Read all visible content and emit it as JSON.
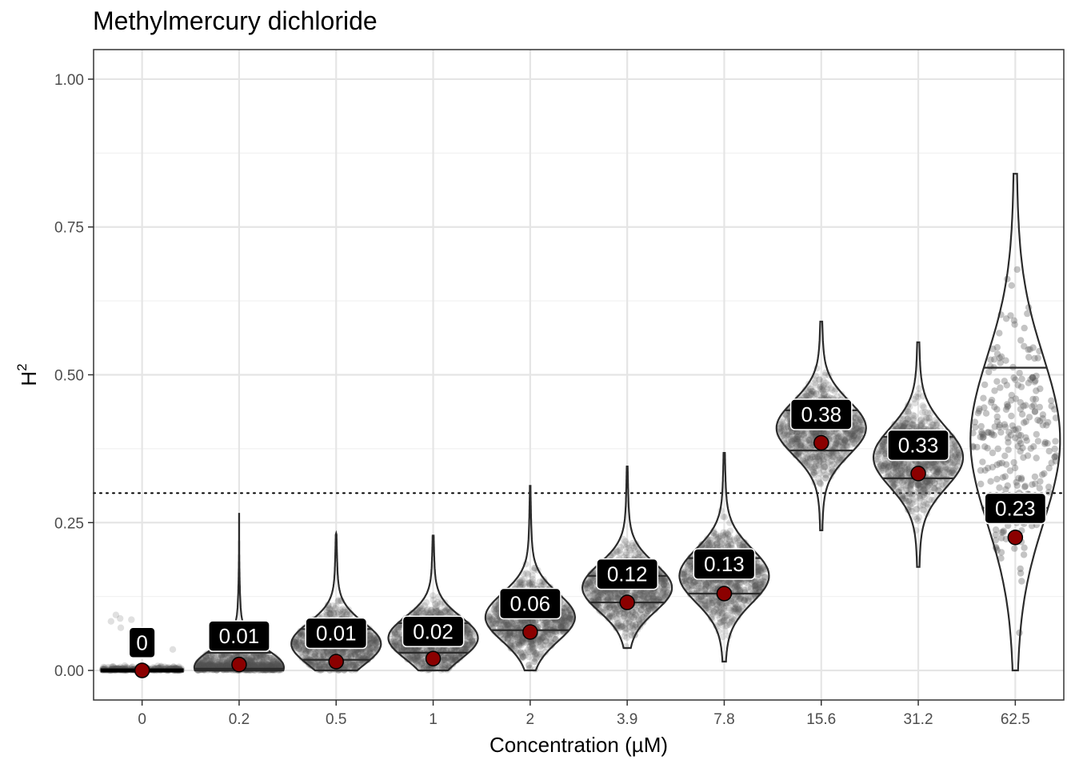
{
  "chart_data": {
    "type": "violin",
    "title": "Methylmercury dichloride",
    "xlabel": "Concentration (µM)",
    "ylabel": "H",
    "ylabel_sup": "2",
    "categories": [
      "0",
      "0.2",
      "0.5",
      "1",
      "2",
      "3.9",
      "7.8",
      "15.6",
      "31.2",
      "62.5"
    ],
    "ylim": [
      -0.05,
      1.05
    ],
    "yticks": [
      0.0,
      0.25,
      0.5,
      0.75,
      1.0
    ],
    "ytick_labels": [
      "0.00",
      "0.25",
      "0.50",
      "0.75",
      "1.00"
    ],
    "threshold": 0.3,
    "grid": true,
    "groups": [
      {
        "category": "0",
        "point": 0.0,
        "label": "0",
        "label_y": 0.047,
        "min": 0.0,
        "max": 0.113,
        "q1": 0.0,
        "q3": 0.0,
        "mode": 0.0,
        "spread": 0.0
      },
      {
        "category": "0.2",
        "point": 0.01,
        "label": "0.01",
        "label_y": 0.058,
        "min": 0.0,
        "max": 0.265,
        "q1": 0.003,
        "q3": 0.03,
        "mode": 0.005,
        "spread": 0.03
      },
      {
        "category": "0.5",
        "point": 0.015,
        "label": "0.01",
        "label_y": 0.063,
        "min": 0.0,
        "max": 0.232,
        "q1": 0.018,
        "q3": 0.07,
        "mode": 0.045,
        "spread": 0.035
      },
      {
        "category": "1",
        "point": 0.02,
        "label": "0.02",
        "label_y": 0.066,
        "min": 0.0,
        "max": 0.228,
        "q1": 0.03,
        "q3": 0.08,
        "mode": 0.055,
        "spread": 0.035
      },
      {
        "category": "2",
        "point": 0.065,
        "label": "0.06",
        "label_y": 0.113,
        "min": 0.0,
        "max": 0.312,
        "q1": 0.068,
        "q3": 0.13,
        "mode": 0.09,
        "spread": 0.04
      },
      {
        "category": "3.9",
        "point": 0.115,
        "label": "0.12",
        "label_y": 0.163,
        "min": 0.038,
        "max": 0.345,
        "q1": 0.115,
        "q3": 0.16,
        "mode": 0.14,
        "spread": 0.04
      },
      {
        "category": "7.8",
        "point": 0.13,
        "label": "0.13",
        "label_y": 0.18,
        "min": 0.015,
        "max": 0.368,
        "q1": 0.13,
        "q3": 0.19,
        "mode": 0.16,
        "spread": 0.045
      },
      {
        "category": "15.6",
        "point": 0.385,
        "label": "0.38",
        "label_y": 0.433,
        "min": 0.237,
        "max": 0.59,
        "q1": 0.372,
        "q3": 0.44,
        "mode": 0.41,
        "spread": 0.045
      },
      {
        "category": "31.2",
        "point": 0.333,
        "label": "0.33",
        "label_y": 0.381,
        "min": 0.175,
        "max": 0.555,
        "q1": 0.325,
        "q3": 0.395,
        "mode": 0.36,
        "spread": 0.05
      },
      {
        "category": "62.5",
        "point": 0.225,
        "label": "0.23",
        "label_y": 0.274,
        "min": 0.0,
        "max": 0.84,
        "q1": 0.275,
        "q3": 0.512,
        "mode": 0.39,
        "spread": 0.14
      }
    ]
  },
  "colors": {
    "point_fill": "#8b0000",
    "violin_stroke": "#2b2b2b",
    "jitter": "#555555",
    "label_bg": "#000000",
    "label_text": "#ffffff",
    "grid_major": "#e5e5e5",
    "grid_minor": "#f2f2f2",
    "panel_border": "#333333"
  }
}
